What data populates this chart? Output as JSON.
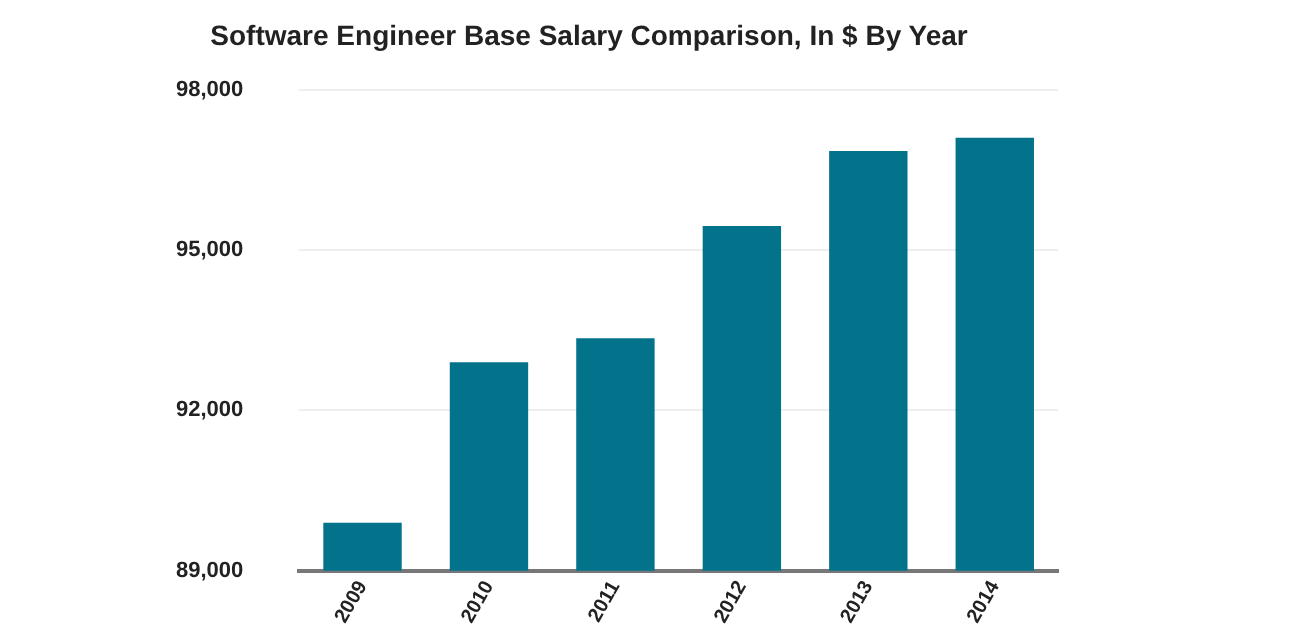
{
  "chart_data": {
    "type": "bar",
    "title": "Software Engineer Base Salary Comparison, In $ By Year",
    "categories": [
      "2009",
      "2010",
      "2011",
      "2012",
      "2013",
      "2014"
    ],
    "values": [
      89900,
      92900,
      93350,
      95450,
      96850,
      97100
    ],
    "color": "#03738c",
    "ylim": [
      89000,
      98000
    ],
    "yticks": [
      {
        "value": 89000,
        "label": "89,000"
      },
      {
        "value": 92000,
        "label": "92,000"
      },
      {
        "value": 95000,
        "label": "95,000"
      },
      {
        "value": 98000,
        "label": "98,000"
      }
    ],
    "grid": "y"
  }
}
